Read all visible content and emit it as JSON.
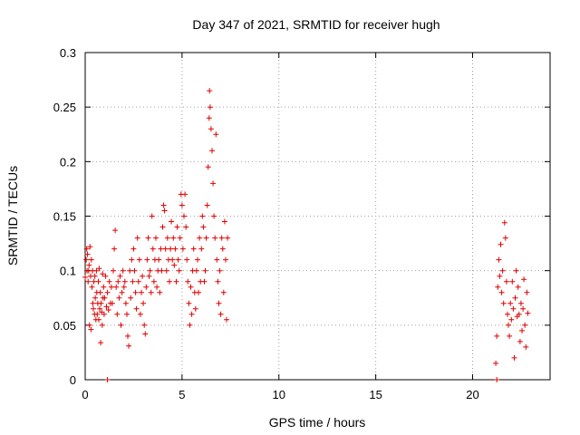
{
  "chart_data": {
    "type": "scatter",
    "title": "Day 347 of 2021, SRMTID for receiver hugh",
    "xlabel": "GPS time / hours",
    "ylabel": "SRMTID / TECUs",
    "xlim": [
      0,
      24
    ],
    "ylim": [
      0,
      0.3
    ],
    "xticks": [
      0,
      5,
      10,
      15,
      20
    ],
    "xtick_labels": [
      "0",
      "5",
      "10",
      "15",
      "20"
    ],
    "yticks": [
      0,
      0.05,
      0.1,
      0.15,
      0.2,
      0.25,
      0.3
    ],
    "ytick_labels": [
      "0",
      "0.05",
      "0.1",
      "0.15",
      "0.2",
      "0.25",
      "0.3"
    ],
    "grid": true,
    "marker": "+",
    "series": [
      {
        "name": "SRMTID",
        "color": "#e00000",
        "points": [
          [
            0.0,
            0.094
          ],
          [
            0.05,
            0.11
          ],
          [
            0.08,
            0.12
          ],
          [
            0.1,
            0.1
          ],
          [
            0.12,
            0.115
          ],
          [
            0.15,
            0.09
          ],
          [
            0.18,
            0.1
          ],
          [
            0.2,
            0.105
          ],
          [
            0.22,
            0.05
          ],
          [
            0.25,
            0.122
          ],
          [
            0.28,
            0.095
          ],
          [
            0.3,
            0.046
          ],
          [
            0.32,
            0.11
          ],
          [
            0.35,
            0.085
          ],
          [
            0.38,
            0.1
          ],
          [
            0.4,
            0.07
          ],
          [
            0.42,
            0.065
          ],
          [
            0.45,
            0.09
          ],
          [
            0.48,
            0.06
          ],
          [
            0.5,
            0.095
          ],
          [
            0.52,
            0.075
          ],
          [
            0.55,
            0.055
          ],
          [
            0.58,
            0.1
          ],
          [
            0.6,
            0.08
          ],
          [
            0.62,
            0.06
          ],
          [
            0.65,
            0.07
          ],
          [
            0.68,
            0.09
          ],
          [
            0.7,
            0.055
          ],
          [
            0.72,
            0.102
          ],
          [
            0.75,
            0.065
          ],
          [
            0.78,
            0.08
          ],
          [
            0.8,
            0.034
          ],
          [
            0.82,
            0.07
          ],
          [
            0.85,
            0.062
          ],
          [
            0.88,
            0.05
          ],
          [
            0.9,
            0.097
          ],
          [
            0.92,
            0.075
          ],
          [
            0.95,
            0.085
          ],
          [
            0.98,
            0.06
          ],
          [
            1.0,
            0.075
          ],
          [
            1.05,
            0.095
          ],
          [
            1.1,
            0.067
          ],
          [
            1.15,
            0.08
          ],
          [
            1.2,
            0.064
          ],
          [
            1.25,
            0.09
          ],
          [
            1.3,
            0.07
          ],
          [
            1.35,
            0.085
          ],
          [
            1.4,
            0.07
          ],
          [
            1.45,
            0.1
          ],
          [
            1.5,
            0.12
          ],
          [
            1.55,
            0.137
          ],
          [
            1.6,
            0.085
          ],
          [
            1.65,
            0.06
          ],
          [
            1.7,
            0.09
          ],
          [
            1.75,
            0.075
          ],
          [
            1.8,
            0.095
          ],
          [
            1.85,
            0.05
          ],
          [
            1.9,
            0.08
          ],
          [
            1.95,
            0.1
          ],
          [
            2.0,
            0.085
          ],
          [
            2.05,
            0.09
          ],
          [
            2.1,
            0.07
          ],
          [
            2.15,
            0.06
          ],
          [
            2.2,
            0.04
          ],
          [
            2.25,
            0.031
          ],
          [
            2.3,
            0.1
          ],
          [
            2.35,
            0.075
          ],
          [
            2.4,
            0.11
          ],
          [
            2.45,
            0.09
          ],
          [
            2.5,
            0.12
          ],
          [
            2.55,
            0.1
          ],
          [
            2.6,
            0.08
          ],
          [
            2.65,
            0.065
          ],
          [
            2.7,
            0.13
          ],
          [
            2.75,
            0.09
          ],
          [
            2.8,
            0.11
          ],
          [
            2.85,
            0.06
          ],
          [
            2.9,
            0.08
          ],
          [
            2.95,
            0.095
          ],
          [
            3.0,
            0.07
          ],
          [
            3.05,
            0.05
          ],
          [
            3.1,
            0.042
          ],
          [
            3.15,
            0.085
          ],
          [
            3.2,
            0.11
          ],
          [
            3.25,
            0.13
          ],
          [
            3.3,
            0.095
          ],
          [
            3.35,
            0.1
          ],
          [
            3.4,
            0.08
          ],
          [
            3.45,
            0.15
          ],
          [
            3.5,
            0.12
          ],
          [
            3.55,
            0.09
          ],
          [
            3.6,
            0.11
          ],
          [
            3.65,
            0.13
          ],
          [
            3.7,
            0.085
          ],
          [
            3.75,
            0.1
          ],
          [
            3.8,
            0.11
          ],
          [
            3.85,
            0.08
          ],
          [
            3.9,
            0.12
          ],
          [
            3.95,
            0.1
          ],
          [
            4.0,
            0.14
          ],
          [
            4.05,
            0.16
          ],
          [
            4.1,
            0.155
          ],
          [
            4.15,
            0.12
          ],
          [
            4.2,
            0.1
          ],
          [
            4.25,
            0.13
          ],
          [
            4.3,
            0.11
          ],
          [
            4.35,
            0.09
          ],
          [
            4.4,
            0.12
          ],
          [
            4.45,
            0.145
          ],
          [
            4.5,
            0.11
          ],
          [
            4.55,
            0.13
          ],
          [
            4.6,
            0.105
          ],
          [
            4.65,
            0.12
          ],
          [
            4.7,
            0.09
          ],
          [
            4.75,
            0.14
          ],
          [
            4.8,
            0.11
          ],
          [
            4.85,
            0.1
          ],
          [
            4.9,
            0.13
          ],
          [
            4.95,
            0.17
          ],
          [
            5.0,
            0.16
          ],
          [
            5.05,
            0.12
          ],
          [
            5.1,
            0.15
          ],
          [
            5.15,
            0.17
          ],
          [
            5.2,
            0.14
          ],
          [
            5.25,
            0.11
          ],
          [
            5.3,
            0.09
          ],
          [
            5.35,
            0.07
          ],
          [
            5.4,
            0.05
          ],
          [
            5.45,
            0.085
          ],
          [
            5.5,
            0.06
          ],
          [
            5.55,
            0.1
          ],
          [
            5.6,
            0.12
          ],
          [
            5.65,
            0.08
          ],
          [
            5.7,
            0.065
          ],
          [
            5.75,
            0.1
          ],
          [
            5.8,
            0.11
          ],
          [
            5.85,
            0.08
          ],
          [
            5.9,
            0.13
          ],
          [
            5.95,
            0.09
          ],
          [
            6.0,
            0.12
          ],
          [
            6.05,
            0.15
          ],
          [
            6.1,
            0.14
          ],
          [
            6.15,
            0.09
          ],
          [
            6.2,
            0.1
          ],
          [
            6.25,
            0.13
          ],
          [
            6.3,
            0.16
          ],
          [
            6.35,
            0.195
          ],
          [
            6.4,
            0.24
          ],
          [
            6.42,
            0.265
          ],
          [
            6.45,
            0.25
          ],
          [
            6.5,
            0.23
          ],
          [
            6.55,
            0.21
          ],
          [
            6.6,
            0.18
          ],
          [
            6.65,
            0.15
          ],
          [
            6.7,
            0.13
          ],
          [
            6.75,
            0.225
          ],
          [
            6.8,
            0.11
          ],
          [
            6.85,
            0.09
          ],
          [
            6.9,
            0.07
          ],
          [
            6.95,
            0.1
          ],
          [
            7.0,
            0.06
          ],
          [
            7.05,
            0.13
          ],
          [
            7.1,
            0.12
          ],
          [
            7.15,
            0.08
          ],
          [
            7.2,
            0.145
          ],
          [
            7.25,
            0.11
          ],
          [
            7.3,
            0.055
          ],
          [
            7.35,
            0.13
          ],
          [
            1.15,
            0.0
          ],
          [
            21.25,
            0.0
          ],
          [
            21.2,
            0.015
          ],
          [
            21.25,
            0.04
          ],
          [
            21.3,
            0.085
          ],
          [
            21.35,
            0.11
          ],
          [
            21.4,
            0.095
          ],
          [
            21.45,
            0.124
          ],
          [
            21.5,
            0.08
          ],
          [
            21.55,
            0.1
          ],
          [
            21.6,
            0.07
          ],
          [
            21.65,
            0.144
          ],
          [
            21.7,
            0.13
          ],
          [
            21.75,
            0.09
          ],
          [
            21.8,
            0.06
          ],
          [
            21.85,
            0.05
          ],
          [
            21.9,
            0.04
          ],
          [
            21.95,
            0.07
          ],
          [
            22.0,
            0.055
          ],
          [
            22.05,
            0.09
          ],
          [
            22.1,
            0.065
          ],
          [
            22.15,
            0.02
          ],
          [
            22.2,
            0.075
          ],
          [
            22.25,
            0.1
          ],
          [
            22.3,
            0.058
          ],
          [
            22.35,
            0.085
          ],
          [
            22.4,
            0.06
          ],
          [
            22.45,
            0.035
          ],
          [
            22.5,
            0.07
          ],
          [
            22.55,
            0.045
          ],
          [
            22.6,
            0.065
          ],
          [
            22.65,
            0.092
          ],
          [
            22.7,
            0.05
          ],
          [
            22.75,
            0.03
          ],
          [
            22.8,
            0.08
          ],
          [
            22.85,
            0.061
          ]
        ]
      }
    ]
  }
}
